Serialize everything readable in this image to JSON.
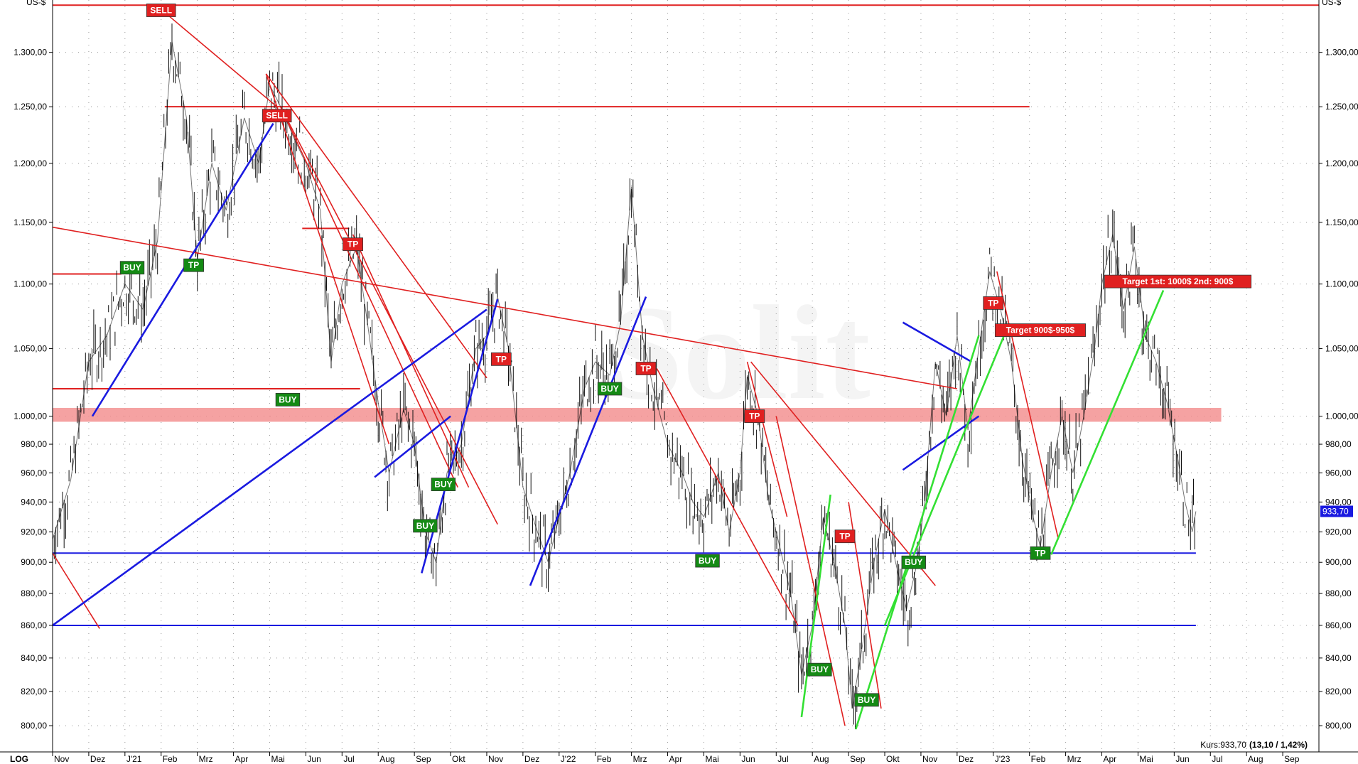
{
  "chart_data": {
    "type": "line",
    "y_unit_left": "US-$",
    "y_unit_right": "US-$",
    "scale_label": "LOG",
    "y_scale": "log",
    "ylim": [
      785,
      1350
    ],
    "xlim": [
      0,
      32.5
    ],
    "y_ticks": [
      {
        "v": 800,
        "label": "800,00"
      },
      {
        "v": 820,
        "label": "820,00"
      },
      {
        "v": 840,
        "label": "840,00"
      },
      {
        "v": 860,
        "label": "860,00"
      },
      {
        "v": 880,
        "label": "880,00"
      },
      {
        "v": 900,
        "label": "900,00"
      },
      {
        "v": 920,
        "label": "920,00"
      },
      {
        "v": 940,
        "label": "940,00"
      },
      {
        "v": 960,
        "label": "960,00"
      },
      {
        "v": 980,
        "label": "980,00"
      },
      {
        "v": 1000,
        "label": "1.000,00"
      },
      {
        "v": 1050,
        "label": "1.050,00"
      },
      {
        "v": 1100,
        "label": "1.100,00"
      },
      {
        "v": 1150,
        "label": "1.150,00"
      },
      {
        "v": 1200,
        "label": "1.200,00"
      },
      {
        "v": 1250,
        "label": "1.250,00"
      },
      {
        "v": 1300,
        "label": "1.300,00"
      }
    ],
    "x_ticks": [
      {
        "x": 0,
        "label": "Nov"
      },
      {
        "x": 1,
        "label": "Dez"
      },
      {
        "x": 2,
        "label": "J'21"
      },
      {
        "x": 3,
        "label": "Feb"
      },
      {
        "x": 4,
        "label": "Mrz"
      },
      {
        "x": 5,
        "label": "Apr"
      },
      {
        "x": 6,
        "label": "Mai"
      },
      {
        "x": 7,
        "label": "Jun"
      },
      {
        "x": 8,
        "label": "Jul"
      },
      {
        "x": 9,
        "label": "Aug"
      },
      {
        "x": 10,
        "label": "Sep"
      },
      {
        "x": 11,
        "label": "Okt"
      },
      {
        "x": 12,
        "label": "Nov"
      },
      {
        "x": 13,
        "label": "Dez"
      },
      {
        "x": 14,
        "label": "J'22"
      },
      {
        "x": 15,
        "label": "Feb"
      },
      {
        "x": 16,
        "label": "Mrz"
      },
      {
        "x": 17,
        "label": "Apr"
      },
      {
        "x": 18,
        "label": "Mai"
      },
      {
        "x": 19,
        "label": "Jun"
      },
      {
        "x": 20,
        "label": "Jul"
      },
      {
        "x": 21,
        "label": "Aug"
      },
      {
        "x": 22,
        "label": "Sep"
      },
      {
        "x": 23,
        "label": "Okt"
      },
      {
        "x": 24,
        "label": "Nov"
      },
      {
        "x": 25,
        "label": "Dez"
      },
      {
        "x": 26,
        "label": "J'23"
      },
      {
        "x": 27,
        "label": "Feb"
      },
      {
        "x": 28,
        "label": "Mrz"
      },
      {
        "x": 29,
        "label": "Apr"
      },
      {
        "x": 30,
        "label": "Mai"
      },
      {
        "x": 31,
        "label": "Jun"
      },
      {
        "x": 32,
        "label": "Jul"
      },
      {
        "x": 33,
        "label": "Aug"
      },
      {
        "x": 34,
        "label": "Sep"
      }
    ],
    "series": [
      {
        "values": [
          [
            0.0,
            915
          ],
          [
            0.5,
            955
          ],
          [
            1.0,
            1040
          ],
          [
            1.5,
            1060
          ],
          [
            2.0,
            1100
          ],
          [
            2.5,
            1080
          ],
          [
            2.9,
            1135
          ],
          [
            3.3,
            1310
          ],
          [
            3.7,
            1240
          ],
          [
            4.0,
            1120
          ],
          [
            4.4,
            1200
          ],
          [
            4.8,
            1160
          ],
          [
            5.3,
            1240
          ],
          [
            5.7,
            1200
          ],
          [
            6.0,
            1270
          ],
          [
            6.3,
            1250
          ],
          [
            6.7,
            1220
          ],
          [
            7.0,
            1200
          ],
          [
            7.4,
            1160
          ],
          [
            7.7,
            1040
          ],
          [
            8.0,
            1100
          ],
          [
            8.4,
            1130
          ],
          [
            8.7,
            1070
          ],
          [
            9.0,
            1010
          ],
          [
            9.3,
            960
          ],
          [
            9.7,
            1005
          ],
          [
            10.0,
            980
          ],
          [
            10.3,
            920
          ],
          [
            10.6,
            900
          ],
          [
            10.9,
            960
          ],
          [
            11.3,
            980
          ],
          [
            11.7,
            1050
          ],
          [
            12.0,
            1060
          ],
          [
            12.3,
            1090
          ],
          [
            12.6,
            1050
          ],
          [
            13.0,
            950
          ],
          [
            13.4,
            920
          ],
          [
            13.7,
            900
          ],
          [
            14.0,
            930
          ],
          [
            14.3,
            960
          ],
          [
            14.7,
            1020
          ],
          [
            15.0,
            1040
          ],
          [
            15.4,
            1030
          ],
          [
            15.7,
            1070
          ],
          [
            16.0,
            1180
          ],
          [
            16.3,
            1060
          ],
          [
            16.6,
            1020
          ],
          [
            17.0,
            980
          ],
          [
            17.4,
            960
          ],
          [
            17.7,
            940
          ],
          [
            18.0,
            930
          ],
          [
            18.4,
            960
          ],
          [
            18.7,
            920
          ],
          [
            19.0,
            960
          ],
          [
            19.2,
            1030
          ],
          [
            19.5,
            1000
          ],
          [
            19.8,
            940
          ],
          [
            20.1,
            910
          ],
          [
            20.4,
            880
          ],
          [
            20.7,
            830
          ],
          [
            21.0,
            860
          ],
          [
            21.3,
            930
          ],
          [
            21.6,
            900
          ],
          [
            21.9,
            860
          ],
          [
            22.1,
            810
          ],
          [
            22.4,
            850
          ],
          [
            22.7,
            900
          ],
          [
            23.0,
            935
          ],
          [
            23.3,
            900
          ],
          [
            23.6,
            870
          ],
          [
            23.9,
            900
          ],
          [
            24.1,
            940
          ],
          [
            24.4,
            1040
          ],
          [
            24.7,
            1000
          ],
          [
            25.0,
            1060
          ],
          [
            25.3,
            990
          ],
          [
            25.6,
            1050
          ],
          [
            25.9,
            1110
          ],
          [
            26.2,
            1080
          ],
          [
            26.5,
            1040
          ],
          [
            26.8,
            970
          ],
          [
            27.1,
            930
          ],
          [
            27.3,
            910
          ],
          [
            27.6,
            960
          ],
          [
            27.9,
            1000
          ],
          [
            28.2,
            960
          ],
          [
            28.5,
            1000
          ],
          [
            28.8,
            1050
          ],
          [
            29.0,
            1100
          ],
          [
            29.3,
            1140
          ],
          [
            29.6,
            1080
          ],
          [
            29.9,
            1130
          ],
          [
            30.2,
            1060
          ],
          [
            30.5,
            1040
          ],
          [
            30.8,
            1010
          ],
          [
            31.1,
            970
          ],
          [
            31.3,
            940
          ],
          [
            31.5,
            920
          ],
          [
            31.6,
            933.7
          ]
        ]
      }
    ],
    "horizontal_levels": [
      {
        "y": 1345,
        "color": "#e02020",
        "from": 0,
        "to": 35
      },
      {
        "y": 1250,
        "color": "#e02020",
        "from": 3.1,
        "to": 27.0
      },
      {
        "y": 1108,
        "color": "#e02020",
        "from": 0,
        "to": 1.9
      },
      {
        "y": 1145,
        "color": "#e02020",
        "from": 6.9,
        "to": 8.2
      },
      {
        "y": 1020,
        "color": "#e02020",
        "from": 0,
        "to": 8.5
      },
      {
        "y": 906,
        "color": "#1a1ae0",
        "from": 0,
        "to": 31.6
      },
      {
        "y": 860,
        "color": "#1a1ae0",
        "from": 0,
        "to": 31.6
      }
    ],
    "zone": {
      "y1": 996,
      "y2": 1006,
      "from": 0,
      "to": 32.3,
      "color": "#f28b8b"
    },
    "trendlines": [
      {
        "x1": 3.2,
        "y1": 1335,
        "x2": 6.2,
        "y2": 1250,
        "color": "#e02020"
      },
      {
        "x1": 0,
        "y1": 1146,
        "x2": 25.0,
        "y2": 1020,
        "color": "#e02020"
      },
      {
        "x1": 5.9,
        "y1": 1280,
        "x2": 12.0,
        "y2": 1028,
        "color": "#e02020"
      },
      {
        "x1": 5.9,
        "y1": 1280,
        "x2": 9.3,
        "y2": 980,
        "color": "#e02020"
      },
      {
        "x1": 6.3,
        "y1": 1250,
        "x2": 11.2,
        "y2": 950,
        "color": "#e02020"
      },
      {
        "x1": 6.3,
        "y1": 1250,
        "x2": 12.3,
        "y2": 925,
        "color": "#e02020"
      },
      {
        "x1": 8.3,
        "y1": 1140,
        "x2": 11.5,
        "y2": 950,
        "color": "#e02020"
      },
      {
        "x1": 19.2,
        "y1": 1040,
        "x2": 20.3,
        "y2": 930,
        "color": "#e02020"
      },
      {
        "x1": 19.3,
        "y1": 1040,
        "x2": 24.4,
        "y2": 885,
        "color": "#e02020"
      },
      {
        "x1": 16.7,
        "y1": 1035,
        "x2": 20.6,
        "y2": 860,
        "color": "#e02020"
      },
      {
        "x1": 20.0,
        "y1": 1000,
        "x2": 21.9,
        "y2": 800,
        "color": "#e02020"
      },
      {
        "x1": 22.0,
        "y1": 940,
        "x2": 22.9,
        "y2": 810,
        "color": "#e02020"
      },
      {
        "x1": 26.1,
        "y1": 1110,
        "x2": 27.8,
        "y2": 915,
        "color": "#e02020"
      },
      {
        "x1": 0,
        "y1": 906,
        "x2": 1.3,
        "y2": 858,
        "color": "#e02020"
      },
      {
        "x1": 0,
        "y1": 860,
        "x2": 12.0,
        "y2": 1080,
        "color": "#1a1ae0"
      },
      {
        "x1": 1.1,
        "y1": 1000,
        "x2": 6.1,
        "y2": 1235,
        "color": "#1a1ae0"
      },
      {
        "x1": 8.9,
        "y1": 957,
        "x2": 11.0,
        "y2": 1000,
        "color": "#1a1ae0"
      },
      {
        "x1": 10.2,
        "y1": 893,
        "x2": 12.3,
        "y2": 1088,
        "color": "#1a1ae0"
      },
      {
        "x1": 13.2,
        "y1": 885,
        "x2": 16.4,
        "y2": 1090,
        "color": "#1a1ae0"
      },
      {
        "x1": 23.5,
        "y1": 962,
        "x2": 25.6,
        "y2": 1000,
        "color": "#1a1ae0"
      },
      {
        "x1": 23.5,
        "y1": 1070,
        "x2": 25.4,
        "y2": 1040,
        "color": "#1a1ae0"
      },
      {
        "x1": 20.7,
        "y1": 805,
        "x2": 21.5,
        "y2": 945,
        "color": "#33e033"
      },
      {
        "x1": 22.2,
        "y1": 798,
        "x2": 25.6,
        "y2": 1060,
        "color": "#33e033"
      },
      {
        "x1": 23.0,
        "y1": 860,
        "x2": 26.3,
        "y2": 1060,
        "color": "#33e033"
      },
      {
        "x1": 27.6,
        "y1": 905,
        "x2": 30.7,
        "y2": 1095,
        "color": "#33e033"
      }
    ],
    "annotations": [
      {
        "x": 3.0,
        "y": 1340,
        "text": "SELL",
        "color": "#e02020"
      },
      {
        "x": 6.2,
        "y": 1242,
        "text": "SELL",
        "color": "#e02020"
      },
      {
        "x": 2.2,
        "y": 1113,
        "text": "BUY",
        "color": "#148a14"
      },
      {
        "x": 3.9,
        "y": 1115,
        "text": "TP",
        "color": "#148a14"
      },
      {
        "x": 8.3,
        "y": 1132,
        "text": "TP",
        "color": "#e02020"
      },
      {
        "x": 6.5,
        "y": 1012,
        "text": "BUY",
        "color": "#148a14"
      },
      {
        "x": 12.4,
        "y": 1042,
        "text": "TP",
        "color": "#e02020"
      },
      {
        "x": 10.8,
        "y": 952,
        "text": "BUY",
        "color": "#148a14"
      },
      {
        "x": 10.3,
        "y": 924,
        "text": "BUY",
        "color": "#148a14"
      },
      {
        "x": 15.4,
        "y": 1020,
        "text": "BUY",
        "color": "#148a14"
      },
      {
        "x": 16.4,
        "y": 1035,
        "text": "TP",
        "color": "#e02020"
      },
      {
        "x": 18.1,
        "y": 901,
        "text": "BUY",
        "color": "#148a14"
      },
      {
        "x": 19.4,
        "y": 1000,
        "text": "TP",
        "color": "#e02020"
      },
      {
        "x": 21.2,
        "y": 833,
        "text": "BUY",
        "color": "#148a14"
      },
      {
        "x": 21.9,
        "y": 917,
        "text": "TP",
        "color": "#e02020"
      },
      {
        "x": 22.5,
        "y": 815,
        "text": "BUY",
        "color": "#148a14"
      },
      {
        "x": 23.8,
        "y": 900,
        "text": "BUY",
        "color": "#148a14"
      },
      {
        "x": 26.0,
        "y": 1085,
        "text": "TP",
        "color": "#e02020"
      },
      {
        "x": 27.3,
        "y": 906,
        "text": "TP",
        "color": "#148a14"
      },
      {
        "x": 27.3,
        "y": 1064,
        "text": "Target 900$-950$",
        "color": "#e02020"
      },
      {
        "x": 31.1,
        "y": 1102,
        "text": "Target 1st: 1000$ 2nd: 900$",
        "color": "#e02020"
      }
    ],
    "last_price": {
      "y": 933.7,
      "label": "933,70"
    },
    "footer": {
      "prefix": "Kurs:",
      "price": "933,70",
      "change": "(13,10 / 1,42%)"
    }
  }
}
